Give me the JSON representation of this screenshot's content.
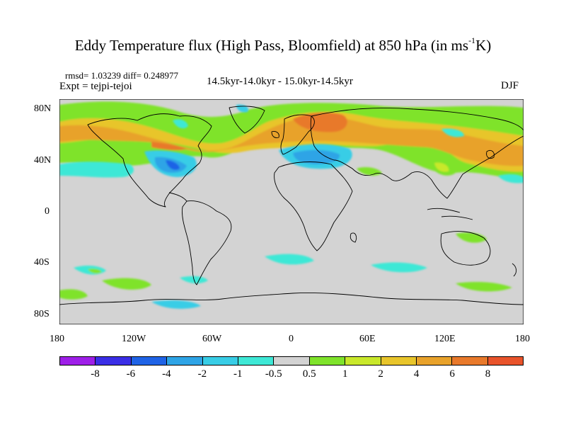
{
  "title": {
    "main": "Eddy Temperature flux (High Pass, Bloomfield) at 850 hPa (in ms",
    "superscript": "-1",
    "end": "K)"
  },
  "stats": "rmsd= 1.03239 diff= 0.248977",
  "experiment": "Expt = tejpi-tejoi",
  "period": "14.5kyr-14.0kyr - 15.0kyr-14.5kyr",
  "season": "DJF",
  "map": {
    "projection": "cylindrical-equidistant",
    "lon_range": [
      -180,
      180
    ],
    "lat_range": [
      -90,
      90
    ],
    "x_ticks": [
      "180",
      "120W",
      "60W",
      "0",
      "60E",
      "120E",
      "180"
    ],
    "y_ticks": [
      "80N",
      "40N",
      "0",
      "40S",
      "80S"
    ],
    "background_color": "#d3d3d3"
  },
  "colorbar": {
    "colors": [
      "#9e1fe8",
      "#3a2ee6",
      "#1f63e6",
      "#2ea4e6",
      "#38cde6",
      "#3ee8d6",
      "#d3d3d3",
      "#7fe32b",
      "#c9e82b",
      "#e8c52b",
      "#e8a22b",
      "#e8792b",
      "#e8532b"
    ],
    "tick_labels": [
      "-8",
      "-6",
      "-4",
      "-2",
      "-1",
      "-0.5",
      "0.5",
      "1",
      "2",
      "4",
      "6",
      "8"
    ]
  }
}
